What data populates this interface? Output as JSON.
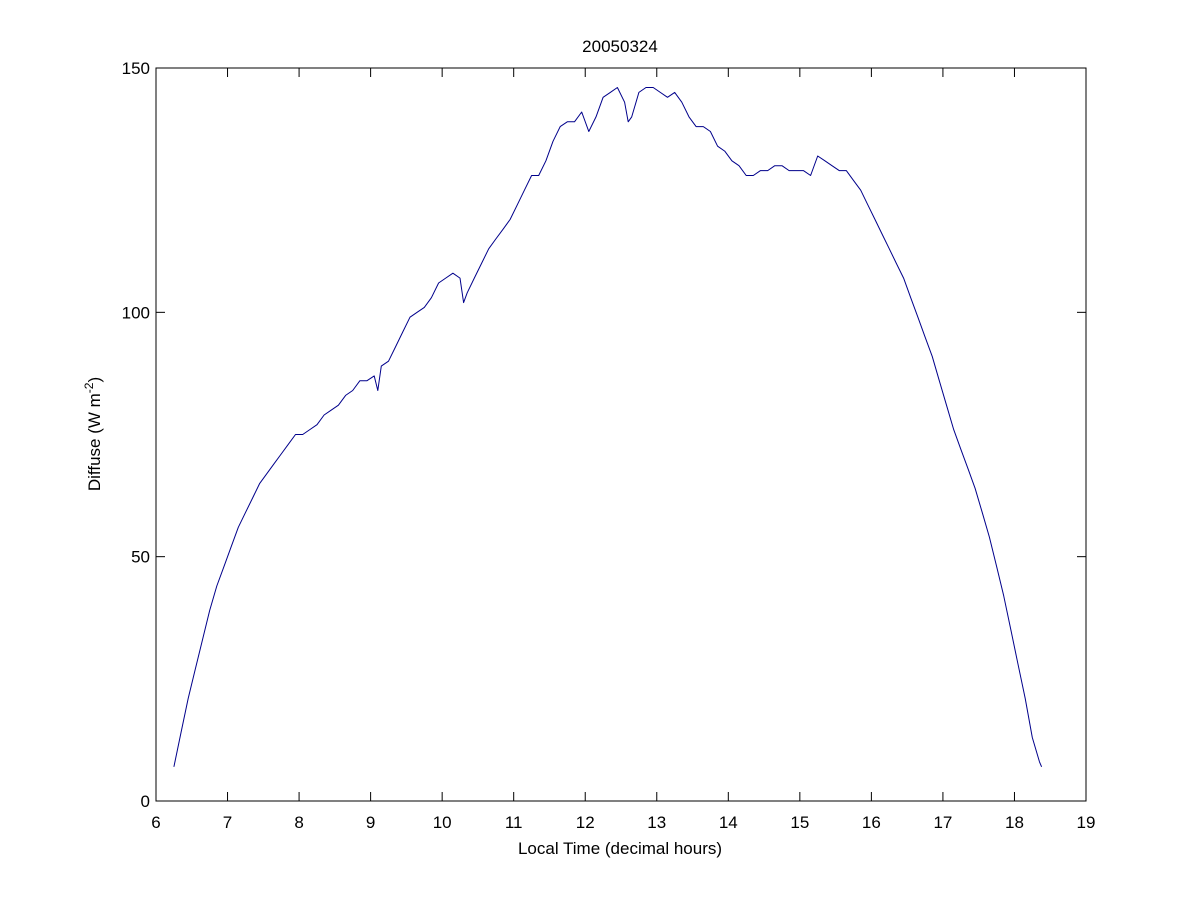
{
  "chart_data": {
    "type": "line",
    "title": "20050324",
    "xlabel": "Local Time (decimal hours)",
    "ylabel_main": "Diffuse (W m",
    "ylabel_sup": "-2",
    "ylabel_close": ")",
    "xlim": [
      6,
      19
    ],
    "ylim": [
      0,
      150
    ],
    "xticks": [
      6,
      7,
      8,
      9,
      10,
      11,
      12,
      13,
      14,
      15,
      16,
      17,
      18,
      19
    ],
    "yticks": [
      0,
      50,
      100,
      150
    ],
    "grid": false,
    "line_color": "#00008b",
    "series": [
      {
        "x": [
          6.25,
          6.35,
          6.45,
          6.55,
          6.65,
          6.75,
          6.85,
          6.95,
          7.05,
          7.15,
          7.25,
          7.35,
          7.45,
          7.55,
          7.65,
          7.75,
          7.85,
          7.95,
          8.05,
          8.15,
          8.25,
          8.35,
          8.45,
          8.55,
          8.65,
          8.75,
          8.85,
          8.95,
          9.05,
          9.1,
          9.15,
          9.25,
          9.35,
          9.45,
          9.55,
          9.65,
          9.75,
          9.85,
          9.95,
          10.05,
          10.15,
          10.25,
          10.3,
          10.35,
          10.45,
          10.55,
          10.65,
          10.75,
          10.85,
          10.95,
          11.05,
          11.15,
          11.25,
          11.35,
          11.45,
          11.55,
          11.65,
          11.75,
          11.85,
          11.95,
          12.05,
          12.15,
          12.25,
          12.35,
          12.45,
          12.55,
          12.6,
          12.65,
          12.75,
          12.85,
          12.95,
          13.05,
          13.15,
          13.25,
          13.35,
          13.45,
          13.55,
          13.65,
          13.75,
          13.85,
          13.95,
          14.05,
          14.15,
          14.25,
          14.35,
          14.45,
          14.55,
          14.65,
          14.75,
          14.85,
          14.95,
          15.05,
          15.15,
          15.25,
          15.35,
          15.45,
          15.55,
          15.65,
          15.75,
          15.85,
          15.95,
          16.05,
          16.15,
          16.25,
          16.35,
          16.45,
          16.55,
          16.65,
          16.75,
          16.85,
          16.95,
          17.05,
          17.15,
          17.25,
          17.35,
          17.45,
          17.55,
          17.65,
          17.75,
          17.85,
          17.95,
          18.05,
          18.15,
          18.25,
          18.35,
          18.38
        ],
        "y": [
          7,
          14,
          21,
          27,
          33,
          39,
          44,
          48,
          52,
          56,
          59,
          62,
          65,
          67,
          69,
          71,
          73,
          75,
          75,
          76,
          77,
          79,
          80,
          81,
          83,
          84,
          86,
          86,
          87,
          84,
          89,
          90,
          93,
          96,
          99,
          100,
          101,
          103,
          106,
          107,
          108,
          107,
          102,
          104,
          107,
          110,
          113,
          115,
          117,
          119,
          122,
          125,
          128,
          128,
          131,
          135,
          138,
          139,
          139,
          141,
          137,
          140,
          144,
          145,
          146,
          143,
          139,
          140,
          145,
          146,
          146,
          145,
          144,
          145,
          143,
          140,
          138,
          138,
          137,
          134,
          133,
          131,
          130,
          128,
          128,
          129,
          129,
          130,
          130,
          129,
          129,
          129,
          128,
          132,
          131,
          130,
          129,
          129,
          127,
          125,
          122,
          119,
          116,
          113,
          110,
          107,
          103,
          99,
          95,
          91,
          86,
          81,
          76,
          72,
          68,
          64,
          59,
          54,
          48,
          42,
          35,
          28,
          21,
          13,
          8,
          7
        ]
      }
    ]
  }
}
